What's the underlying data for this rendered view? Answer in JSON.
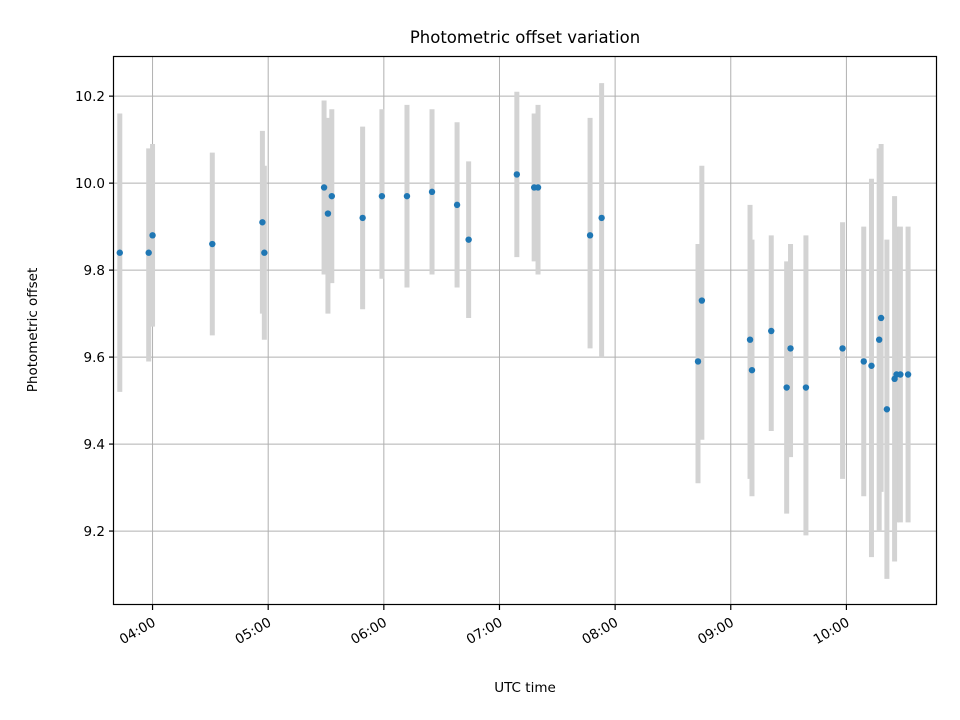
{
  "chart_data": {
    "type": "scatter",
    "title": "Photometric offset variation",
    "xlabel": "UTC time",
    "ylabel": "Photometric offset",
    "x_is_time": true,
    "xlim": [
      "03:40",
      "10:47"
    ],
    "ylim": [
      9.03,
      10.29
    ],
    "x_ticks": [
      "04:00",
      "05:00",
      "06:00",
      "07:00",
      "08:00",
      "09:00",
      "10:00"
    ],
    "y_ticks": [
      9.2,
      9.4,
      9.6,
      9.8,
      10.0,
      10.2
    ],
    "grid": true,
    "marker_color": "#1f77b4",
    "errorbar_color": "#d3d3d3",
    "series": [
      {
        "points": [
          {
            "x": "03:43",
            "y": 9.84,
            "ylo": 9.52,
            "yhi": 10.16
          },
          {
            "x": "03:58",
            "y": 9.84,
            "ylo": 9.59,
            "yhi": 10.08
          },
          {
            "x": "04:00",
            "y": 9.88,
            "ylo": 9.67,
            "yhi": 10.09
          },
          {
            "x": "04:31",
            "y": 9.86,
            "ylo": 9.65,
            "yhi": 10.07
          },
          {
            "x": "04:57",
            "y": 9.91,
            "ylo": 9.7,
            "yhi": 10.12
          },
          {
            "x": "04:58",
            "y": 9.84,
            "ylo": 9.64,
            "yhi": 10.04
          },
          {
            "x": "05:29",
            "y": 9.99,
            "ylo": 9.79,
            "yhi": 10.19
          },
          {
            "x": "05:31",
            "y": 9.93,
            "ylo": 9.7,
            "yhi": 10.15
          },
          {
            "x": "05:33",
            "y": 9.97,
            "ylo": 9.77,
            "yhi": 10.17
          },
          {
            "x": "05:49",
            "y": 9.92,
            "ylo": 9.71,
            "yhi": 10.13
          },
          {
            "x": "05:59",
            "y": 9.97,
            "ylo": 9.78,
            "yhi": 10.17
          },
          {
            "x": "06:12",
            "y": 9.97,
            "ylo": 9.76,
            "yhi": 10.18
          },
          {
            "x": "06:25",
            "y": 9.98,
            "ylo": 9.79,
            "yhi": 10.17
          },
          {
            "x": "06:38",
            "y": 9.95,
            "ylo": 9.76,
            "yhi": 10.14
          },
          {
            "x": "06:44",
            "y": 9.87,
            "ylo": 9.69,
            "yhi": 10.05
          },
          {
            "x": "07:09",
            "y": 10.02,
            "ylo": 9.83,
            "yhi": 10.21
          },
          {
            "x": "07:18",
            "y": 9.99,
            "ylo": 9.82,
            "yhi": 10.16
          },
          {
            "x": "07:20",
            "y": 9.99,
            "ylo": 9.79,
            "yhi": 10.18
          },
          {
            "x": "07:47",
            "y": 9.88,
            "ylo": 9.62,
            "yhi": 10.15
          },
          {
            "x": "07:53",
            "y": 9.92,
            "ylo": 9.6,
            "yhi": 10.23
          },
          {
            "x": "08:43",
            "y": 9.59,
            "ylo": 9.31,
            "yhi": 9.86
          },
          {
            "x": "08:45",
            "y": 9.73,
            "ylo": 9.41,
            "yhi": 10.04
          },
          {
            "x": "09:10",
            "y": 9.64,
            "ylo": 9.32,
            "yhi": 9.95
          },
          {
            "x": "09:11",
            "y": 9.57,
            "ylo": 9.28,
            "yhi": 9.87
          },
          {
            "x": "09:21",
            "y": 9.66,
            "ylo": 9.43,
            "yhi": 9.88
          },
          {
            "x": "09:29",
            "y": 9.53,
            "ylo": 9.24,
            "yhi": 9.82
          },
          {
            "x": "09:31",
            "y": 9.62,
            "ylo": 9.37,
            "yhi": 9.86
          },
          {
            "x": "09:39",
            "y": 9.53,
            "ylo": 9.19,
            "yhi": 9.88
          },
          {
            "x": "09:58",
            "y": 9.62,
            "ylo": 9.32,
            "yhi": 9.91
          },
          {
            "x": "10:09",
            "y": 9.59,
            "ylo": 9.28,
            "yhi": 9.9
          },
          {
            "x": "10:13",
            "y": 9.58,
            "ylo": 9.14,
            "yhi": 10.01
          },
          {
            "x": "10:17",
            "y": 9.64,
            "ylo": 9.2,
            "yhi": 10.08
          },
          {
            "x": "10:18",
            "y": 9.69,
            "ylo": 9.29,
            "yhi": 10.09
          },
          {
            "x": "10:21",
            "y": 9.48,
            "ylo": 9.09,
            "yhi": 9.87
          },
          {
            "x": "10:25",
            "y": 9.55,
            "ylo": 9.13,
            "yhi": 9.97
          },
          {
            "x": "10:26",
            "y": 9.56,
            "ylo": 9.22,
            "yhi": 9.9
          },
          {
            "x": "10:28",
            "y": 9.56,
            "ylo": 9.22,
            "yhi": 9.9
          },
          {
            "x": "10:32",
            "y": 9.56,
            "ylo": 9.22,
            "yhi": 9.9
          }
        ]
      }
    ]
  }
}
